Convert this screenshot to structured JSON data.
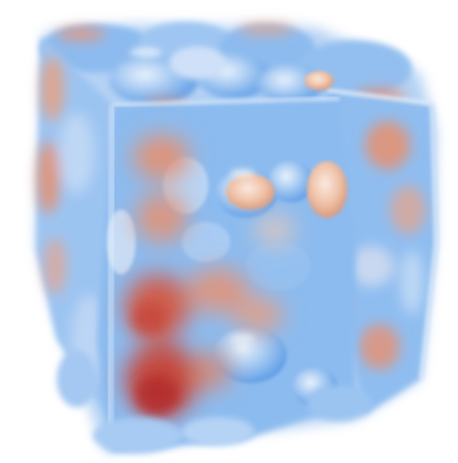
{
  "scene": {
    "subject": "volume-rendered-cube",
    "colors": {
      "background": "#ffffff",
      "cold": "#7fb3ee",
      "cold_light": "#bcd6f5",
      "cold_deep": "#4e93e4",
      "warm": "#e99a77",
      "hot": "#c8473a",
      "hot_deep": "#b2302c",
      "neutral": "#f1e3da"
    }
  }
}
